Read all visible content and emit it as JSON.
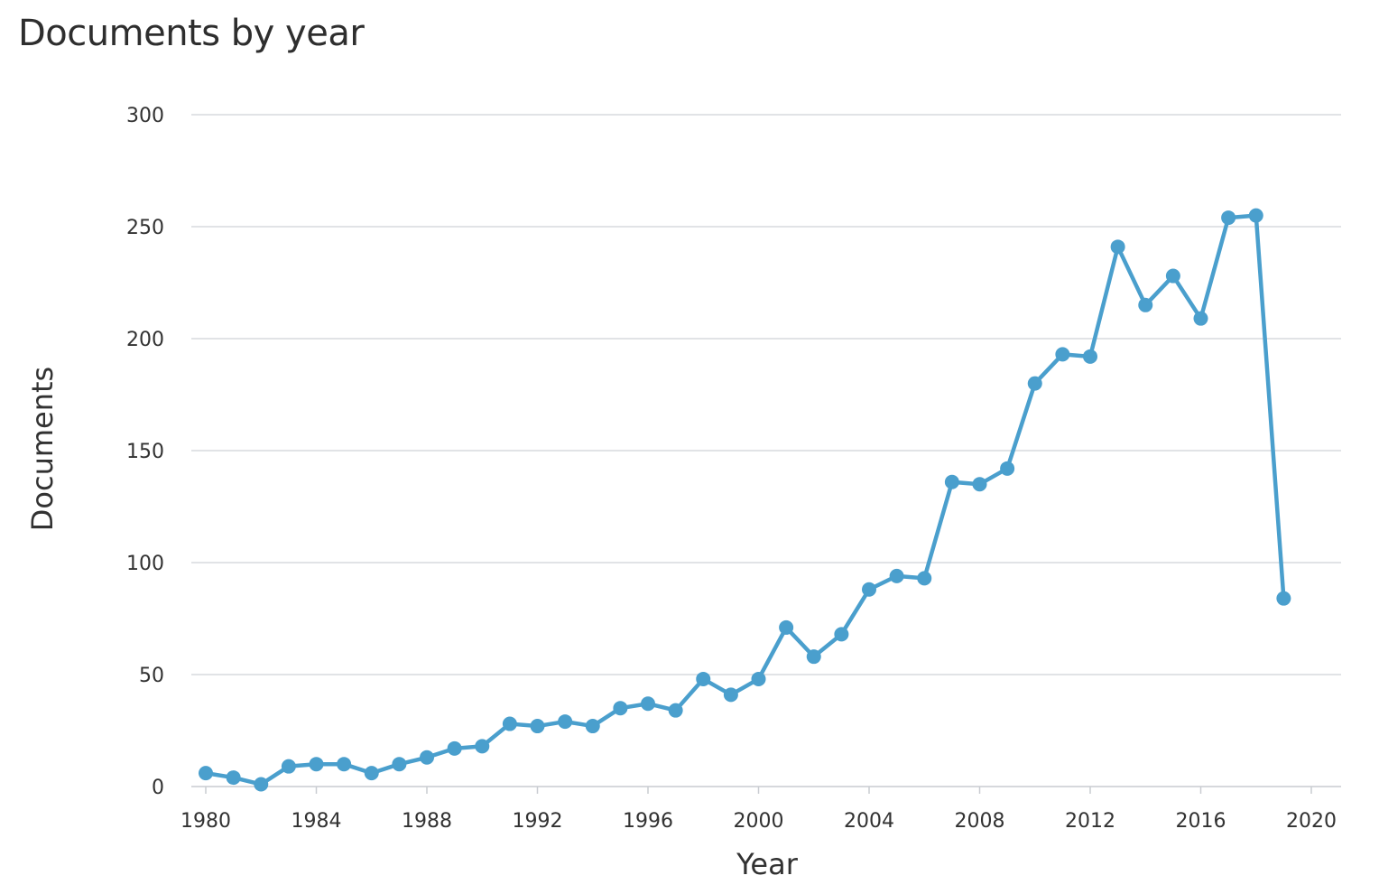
{
  "chart_data": {
    "type": "line",
    "title": "Documents by year",
    "xlabel": "Year",
    "ylabel": "Documents",
    "xlim": [
      1980,
      2020
    ],
    "ylim": [
      0,
      300
    ],
    "x_ticks": [
      1980,
      1984,
      1988,
      1992,
      1996,
      2000,
      2004,
      2008,
      2012,
      2016,
      2020
    ],
    "y_ticks": [
      0,
      50,
      100,
      150,
      200,
      250,
      300
    ],
    "grid": true,
    "legend": "none",
    "series": [
      {
        "color": "#4a9fcd",
        "points": [
          {
            "x": 1980,
            "y": 6
          },
          {
            "x": 1981,
            "y": 4
          },
          {
            "x": 1982,
            "y": 1
          },
          {
            "x": 1983,
            "y": 9
          },
          {
            "x": 1984,
            "y": 10
          },
          {
            "x": 1985,
            "y": 10
          },
          {
            "x": 1986,
            "y": 6
          },
          {
            "x": 1987,
            "y": 10
          },
          {
            "x": 1988,
            "y": 13
          },
          {
            "x": 1989,
            "y": 17
          },
          {
            "x": 1990,
            "y": 18
          },
          {
            "x": 1991,
            "y": 28
          },
          {
            "x": 1992,
            "y": 27
          },
          {
            "x": 1993,
            "y": 29
          },
          {
            "x": 1994,
            "y": 27
          },
          {
            "x": 1995,
            "y": 35
          },
          {
            "x": 1996,
            "y": 37
          },
          {
            "x": 1997,
            "y": 34
          },
          {
            "x": 1998,
            "y": 48
          },
          {
            "x": 1999,
            "y": 41
          },
          {
            "x": 2000,
            "y": 48
          },
          {
            "x": 2001,
            "y": 71
          },
          {
            "x": 2002,
            "y": 58
          },
          {
            "x": 2003,
            "y": 68
          },
          {
            "x": 2004,
            "y": 88
          },
          {
            "x": 2005,
            "y": 94
          },
          {
            "x": 2006,
            "y": 93
          },
          {
            "x": 2007,
            "y": 136
          },
          {
            "x": 2008,
            "y": 135
          },
          {
            "x": 2009,
            "y": 142
          },
          {
            "x": 2010,
            "y": 180
          },
          {
            "x": 2011,
            "y": 193
          },
          {
            "x": 2012,
            "y": 192
          },
          {
            "x": 2013,
            "y": 241
          },
          {
            "x": 2014,
            "y": 215
          },
          {
            "x": 2015,
            "y": 228
          },
          {
            "x": 2016,
            "y": 209
          },
          {
            "x": 2017,
            "y": 254
          },
          {
            "x": 2018,
            "y": 255
          },
          {
            "x": 2019,
            "y": 84
          }
        ]
      }
    ]
  }
}
